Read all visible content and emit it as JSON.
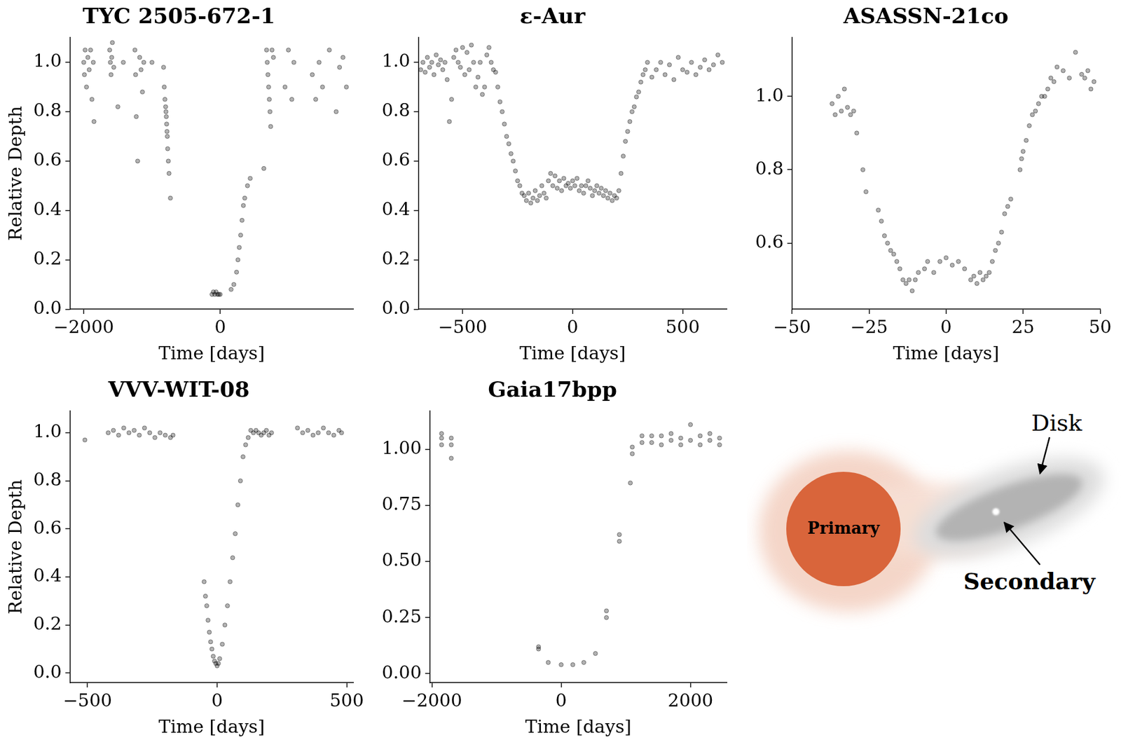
{
  "chart_data": [
    {
      "type": "scatter",
      "title": "TYC 2505-672-1",
      "x_label": "Time [days]",
      "y_label": "Relative Depth",
      "x": [
        -2000,
        -1990,
        -1980,
        -1960,
        -1940,
        -1920,
        -1900,
        -1880,
        -1860,
        -1850,
        -1620,
        -1610,
        -1600,
        -1590,
        -1580,
        -1560,
        -1500,
        -1420,
        -1250,
        -1240,
        -1230,
        -1210,
        -1180,
        -1160,
        -1140,
        -1120,
        -1000,
        -830,
        -820,
        -810,
        -800,
        -795,
        -790,
        -785,
        -780,
        -775,
        -770,
        -760,
        -750,
        -730,
        -120,
        -100,
        -80,
        -60,
        -40,
        -20,
        0,
        160,
        200,
        240,
        260,
        280,
        300,
        320,
        340,
        360,
        400,
        440,
        640,
        680,
        690,
        700,
        710,
        720,
        730,
        740,
        760,
        780,
        950,
        1000,
        1050,
        1080,
        1350,
        1400,
        1450,
        1500,
        1600,
        1700,
        1750,
        1800,
        1850
      ],
      "values": [
        1.0,
        0.95,
        1.05,
        0.9,
        1.02,
        0.97,
        1.05,
        0.85,
        1.0,
        0.76,
        1.05,
        1.0,
        0.95,
        1.02,
        1.08,
        0.98,
        0.82,
        1.0,
        1.05,
        0.95,
        0.78,
        0.6,
        1.02,
        0.97,
        0.88,
        1.0,
        1.0,
        0.98,
        0.9,
        0.85,
        0.82,
        0.8,
        0.78,
        0.75,
        0.72,
        0.7,
        0.65,
        0.6,
        0.55,
        0.45,
        0.06,
        0.07,
        0.06,
        0.07,
        0.06,
        0.06,
        0.06,
        0.08,
        0.1,
        0.15,
        0.2,
        0.25,
        0.3,
        0.36,
        0.42,
        0.45,
        0.5,
        0.53,
        0.57,
        1.05,
        1.0,
        0.95,
        0.9,
        0.85,
        0.8,
        0.74,
        1.05,
        1.02,
        0.9,
        1.05,
        0.85,
        1.0,
        0.95,
        0.85,
        1.0,
        0.9,
        1.05,
        0.8,
        0.98,
        1.02,
        0.9
      ],
      "color": "#000000",
      "marker": "circle",
      "grid": false,
      "xlim": [
        -2200,
        1950
      ],
      "xticks": [
        {
          "value": -2000,
          "label": "−2000"
        },
        0
      ],
      "ylim": [
        0,
        1.1
      ],
      "yticks": [
        {
          "value": 0,
          "label": "0.0"
        },
        0.2,
        0.4,
        0.6,
        0.8,
        {
          "value": 1,
          "label": "1.0"
        }
      ]
    },
    {
      "type": "scatter",
      "title": "ε-Aur",
      "x_label": "Time [days]",
      "x": [
        -690,
        -680,
        -670,
        -660,
        -650,
        -640,
        -630,
        -620,
        -610,
        -600,
        -590,
        -580,
        -570,
        -560,
        -550,
        -540,
        -530,
        -520,
        -510,
        -500,
        -490,
        -480,
        -470,
        -460,
        -450,
        -440,
        -430,
        -420,
        -410,
        -400,
        -390,
        -380,
        -370,
        -360,
        -350,
        -340,
        -330,
        -320,
        -310,
        -300,
        -290,
        -280,
        -270,
        -260,
        -250,
        -240,
        -230,
        -220,
        -210,
        -200,
        -190,
        -180,
        -170,
        -160,
        -150,
        -140,
        -130,
        -120,
        -110,
        -100,
        -90,
        -80,
        -70,
        -60,
        -50,
        -40,
        -30,
        -20,
        -10,
        0,
        10,
        20,
        30,
        40,
        50,
        60,
        70,
        80,
        90,
        100,
        110,
        120,
        130,
        140,
        150,
        160,
        170,
        180,
        190,
        200,
        210,
        220,
        230,
        240,
        250,
        260,
        270,
        280,
        290,
        300,
        310,
        320,
        330,
        340,
        360,
        380,
        400,
        420,
        440,
        460,
        480,
        500,
        520,
        540,
        560,
        580,
        600,
        620,
        640,
        660,
        680
      ],
      "values": [
        0.97,
        1.0,
        0.96,
        1.02,
        0.98,
        1.0,
        0.95,
        1.03,
        0.99,
        1.01,
        0.97,
        1.0,
        0.93,
        0.76,
        0.85,
        1.02,
        1.05,
        1.0,
        0.98,
        1.06,
        0.95,
        1.04,
        0.97,
        1.07,
        1.0,
        0.9,
        0.94,
        1.0,
        0.87,
        0.9,
        1.03,
        1.06,
        1.0,
        0.97,
        0.96,
        0.9,
        0.84,
        0.8,
        0.75,
        0.7,
        0.67,
        0.63,
        0.6,
        0.56,
        0.52,
        0.5,
        0.47,
        0.46,
        0.44,
        0.47,
        0.43,
        0.45,
        0.48,
        0.44,
        0.46,
        0.5,
        0.47,
        0.45,
        0.52,
        0.55,
        0.5,
        0.54,
        0.49,
        0.52,
        0.48,
        0.53,
        0.5,
        0.51,
        0.49,
        0.52,
        0.5,
        0.53,
        0.48,
        0.5,
        0.47,
        0.5,
        0.52,
        0.49,
        0.46,
        0.48,
        0.5,
        0.47,
        0.49,
        0.46,
        0.48,
        0.45,
        0.47,
        0.44,
        0.46,
        0.45,
        0.48,
        0.55,
        0.62,
        0.68,
        0.72,
        0.76,
        0.8,
        0.82,
        0.86,
        0.88,
        0.92,
        0.95,
        0.97,
        1.0,
        0.94,
        0.97,
        1.0,
        0.95,
        0.99,
        0.93,
        1.02,
        0.97,
        0.96,
        1.0,
        0.95,
        0.98,
        1.01,
        0.97,
        0.99,
        1.03,
        1.0
      ],
      "color": "#000000",
      "marker": "circle",
      "grid": false,
      "xlim": [
        -700,
        700
      ],
      "xticks": [
        {
          "value": -500,
          "label": "−500"
        },
        0,
        500
      ],
      "ylim": [
        0,
        1.1
      ],
      "yticks": [
        {
          "value": 0,
          "label": "0.0"
        },
        0.2,
        0.4,
        0.6,
        0.8,
        {
          "value": 1,
          "label": "1.0"
        }
      ]
    },
    {
      "type": "scatter",
      "title": "ASASSN-21co",
      "x_label": "Time [days]",
      "x": [
        -37,
        -36,
        -35,
        -34,
        -33,
        -32,
        -31,
        -30,
        -29,
        -27,
        -26,
        -22,
        -21,
        -20,
        -19,
        -18,
        -17,
        -16,
        -15,
        -14,
        -13,
        -12,
        -11,
        -10,
        -9,
        -7,
        -6,
        -4,
        -2,
        0,
        2,
        4,
        6,
        8,
        9,
        10,
        11,
        12,
        13,
        14,
        15,
        16,
        17,
        18,
        19,
        20,
        21,
        24,
        24.5,
        25,
        26,
        27,
        28,
        29,
        30,
        31,
        32,
        33,
        34,
        35,
        36,
        38,
        40,
        42,
        44,
        45,
        46,
        47,
        48
      ],
      "values": [
        0.98,
        0.95,
        1.0,
        0.96,
        1.02,
        0.97,
        0.95,
        0.96,
        0.9,
        0.8,
        0.74,
        0.69,
        0.66,
        0.62,
        0.6,
        0.58,
        0.57,
        0.55,
        0.53,
        0.5,
        0.49,
        0.5,
        0.47,
        0.5,
        0.52,
        0.53,
        0.55,
        0.52,
        0.55,
        0.56,
        0.54,
        0.55,
        0.53,
        0.5,
        0.51,
        0.49,
        0.52,
        0.5,
        0.51,
        0.52,
        0.55,
        0.58,
        0.6,
        0.63,
        0.68,
        0.7,
        0.72,
        0.8,
        0.83,
        0.85,
        0.88,
        0.92,
        0.95,
        0.96,
        0.98,
        1.0,
        1.0,
        1.02,
        1.05,
        1.04,
        1.08,
        1.07,
        1.05,
        1.12,
        1.06,
        1.05,
        1.07,
        1.02,
        1.04
      ],
      "color": "#000000",
      "marker": "circle",
      "grid": false,
      "xlim": [
        -50,
        50
      ],
      "xticks": [
        {
          "value": -50,
          "label": "−50"
        },
        {
          "value": -25,
          "label": "−25"
        },
        0,
        25,
        50
      ],
      "ylim": [
        0.42,
        1.16
      ],
      "yticks": [
        0.6,
        0.8,
        {
          "value": 1,
          "label": "1.0"
        }
      ]
    },
    {
      "type": "scatter",
      "title": "VVV-WIT-08",
      "x_label": "Time [days]",
      "y_label": "Relative Depth",
      "x": [
        -510,
        -420,
        -400,
        -380,
        -360,
        -340,
        -320,
        -300,
        -280,
        -260,
        -240,
        -220,
        -200,
        -180,
        -170,
        -50,
        -45,
        -40,
        -35,
        -30,
        -25,
        -20,
        -15,
        -10,
        -5,
        0,
        5,
        10,
        20,
        30,
        40,
        50,
        60,
        70,
        80,
        90,
        100,
        110,
        120,
        130,
        140,
        150,
        160,
        170,
        180,
        190,
        200,
        210,
        310,
        330,
        350,
        370,
        390,
        410,
        430,
        450,
        470,
        480
      ],
      "values": [
        0.97,
        1.0,
        1.01,
        0.99,
        1.02,
        1.0,
        1.01,
        0.99,
        1.02,
        1.0,
        0.98,
        1.0,
        0.99,
        0.98,
        0.99,
        0.38,
        0.32,
        0.28,
        0.22,
        0.17,
        0.13,
        0.1,
        0.07,
        0.05,
        0.04,
        0.03,
        0.04,
        0.06,
        0.12,
        0.2,
        0.28,
        0.38,
        0.48,
        0.58,
        0.7,
        0.8,
        0.9,
        0.95,
        0.98,
        1.01,
        1.0,
        1.01,
        1.0,
        0.99,
        1.0,
        1.01,
        0.99,
        1.0,
        1.02,
        1.0,
        1.01,
        0.99,
        1.0,
        1.02,
        1.0,
        0.99,
        1.01,
        1.0
      ],
      "color": "#000000",
      "marker": "circle",
      "grid": false,
      "xlim": [
        -567,
        525
      ],
      "xticks": [
        {
          "value": -500,
          "label": "−500"
        },
        0,
        500
      ],
      "ylim": [
        -0.04,
        1.09
      ],
      "yticks": [
        {
          "value": 0,
          "label": "0.0"
        },
        0.2,
        0.4,
        0.6,
        0.8,
        {
          "value": 1,
          "label": "1.0"
        }
      ]
    },
    {
      "type": "scatter",
      "title": "Gaia17bpp",
      "x_label": "Time [days]",
      "x": [
        -1850,
        -1850,
        -1850,
        -1700,
        -1700,
        -1700,
        -350,
        -350,
        -200,
        0,
        180,
        350,
        530,
        700,
        700,
        900,
        900,
        1070,
        1100,
        1100,
        1250,
        1250,
        1400,
        1400,
        1550,
        1550,
        1700,
        1700,
        1850,
        1850,
        2000,
        2000,
        2150,
        2150,
        2300,
        2300,
        2450,
        2450
      ],
      "values": [
        1.07,
        1.05,
        1.02,
        1.05,
        1.02,
        0.96,
        0.12,
        0.11,
        0.05,
        0.04,
        0.04,
        0.05,
        0.09,
        0.28,
        0.25,
        0.62,
        0.59,
        0.85,
        1.01,
        0.98,
        1.06,
        1.03,
        1.06,
        1.03,
        1.06,
        1.02,
        1.07,
        1.04,
        1.05,
        1.02,
        1.11,
        1.04,
        1.06,
        1.02,
        1.07,
        1.04,
        1.05,
        1.02
      ],
      "color": "#000000",
      "marker": "circle",
      "grid": false,
      "xlim": [
        -2030,
        2560
      ],
      "xticks": [
        {
          "value": -2000,
          "label": "−2000"
        },
        0,
        2000
      ],
      "ylim": [
        -0.04,
        1.17
      ],
      "yticks": [
        {
          "value": 0,
          "label": "0.00"
        },
        {
          "value": 0.25,
          "label": "0.25"
        },
        {
          "value": 0.5,
          "label": "0.50"
        },
        {
          "value": 0.75,
          "label": "0.75"
        },
        {
          "value": 1,
          "label": "1.00"
        }
      ]
    }
  ],
  "diagram": {
    "primary": "Primary",
    "secondary": "Secondary",
    "disk": "Disk"
  }
}
